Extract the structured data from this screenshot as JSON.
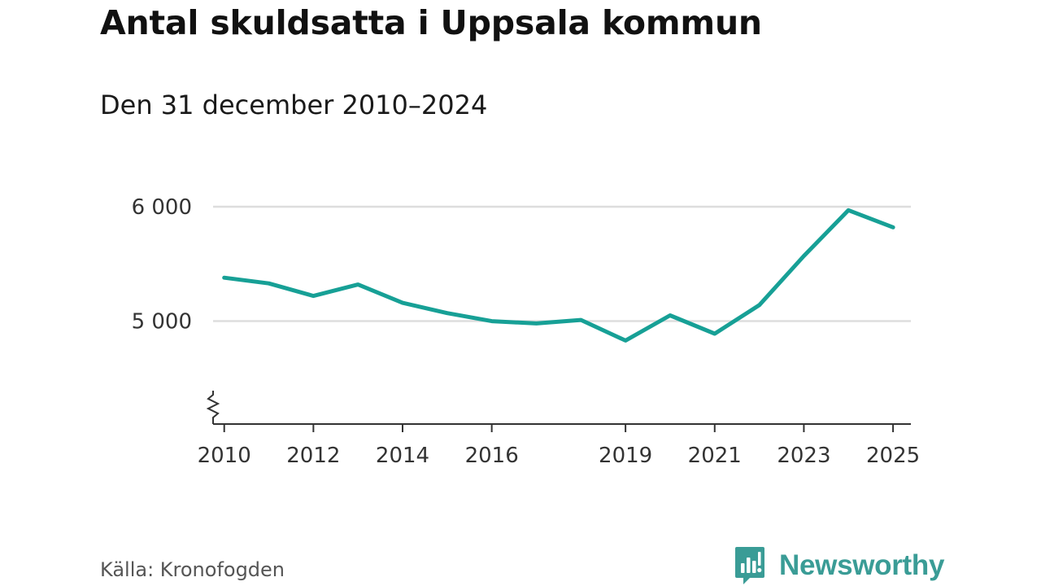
{
  "header": {
    "title": "Antal skuldsatta i Uppsala kommun",
    "subtitle": "Den 31 december 2010–2024"
  },
  "footer": {
    "source": "Källa: Kronofogden",
    "brand": "Newsworthy"
  },
  "colors": {
    "line": "#17a096",
    "grid": "#dddddd",
    "axis": "#333333",
    "brand": "#3a9c96"
  },
  "chart_data": {
    "type": "line",
    "title": "Antal skuldsatta i Uppsala kommun",
    "subtitle": "Den 31 december 2010–2024",
    "xlabel": "",
    "ylabel": "",
    "grid": true,
    "y_axis_break": true,
    "xlim": [
      2009.75,
      2025.4
    ],
    "ylim": [
      4100,
      6100
    ],
    "x_ticks": [
      2010,
      2012,
      2014,
      2016,
      2019,
      2021,
      2023,
      2025
    ],
    "x_tick_labels": [
      "2010",
      "2012",
      "2014",
      "2016",
      "2019",
      "2021",
      "2023",
      "2025"
    ],
    "y_ticks": [
      5000,
      6000
    ],
    "y_tick_labels": [
      "5 000",
      "6 000"
    ],
    "series": [
      {
        "name": "Antal skuldsatta",
        "x": [
          2010,
          2011,
          2012,
          2013,
          2014,
          2015,
          2016,
          2017,
          2018,
          2019,
          2020,
          2021,
          2022,
          2023,
          2024,
          2025
        ],
        "values": [
          5380,
          5330,
          5220,
          5320,
          5160,
          5070,
          5000,
          4980,
          5010,
          4830,
          5050,
          4890,
          5140,
          5570,
          5970,
          5820
        ]
      }
    ]
  }
}
